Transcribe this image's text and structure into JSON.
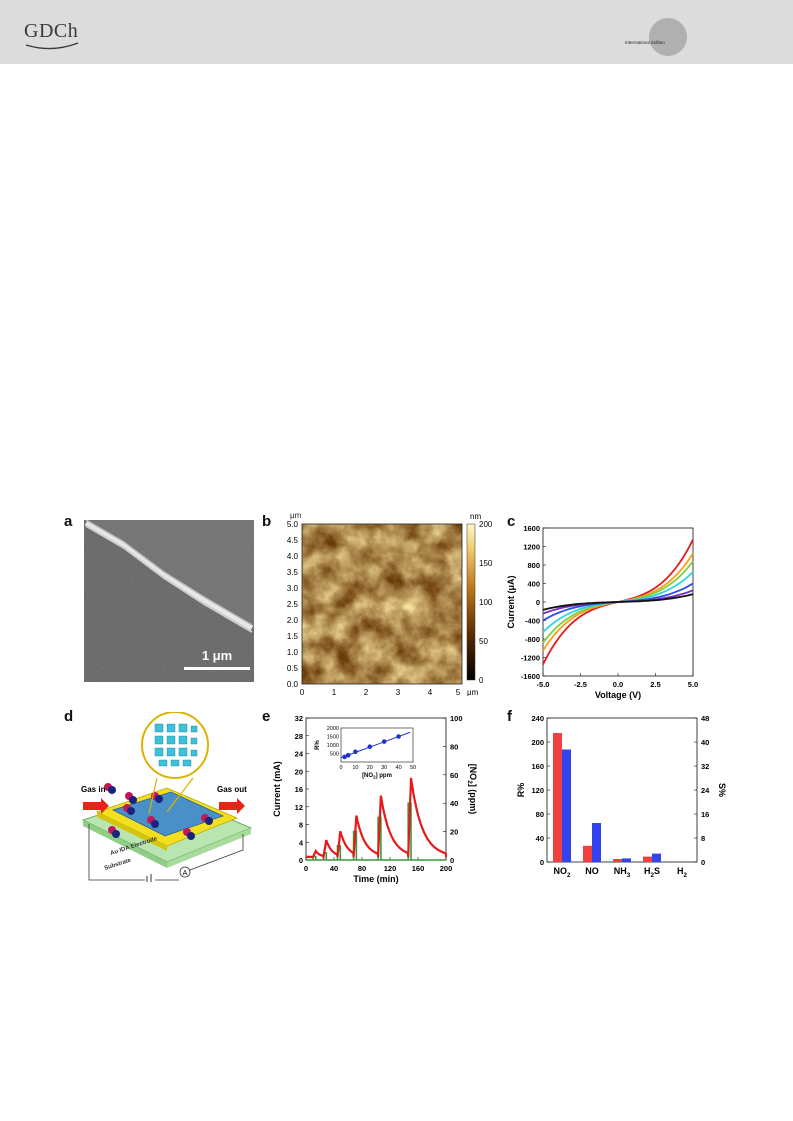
{
  "header": {
    "logo_text": "GDCh",
    "edition_text": "International Edition"
  },
  "panels": {
    "a": {
      "label": "a",
      "scale_bar": "1 μm"
    },
    "b": {
      "label": "b",
      "y_unit": "μm",
      "x_unit": "μm",
      "cbar_unit": "nm",
      "y_ticks": [
        "5.0",
        "4.5",
        "4.0",
        "3.5",
        "3.0",
        "2.5",
        "2.0",
        "1.5",
        "1.0",
        "0.5",
        "0.0"
      ],
      "x_ticks": [
        "0",
        "1",
        "2",
        "3",
        "4",
        "5"
      ],
      "cbar_ticks": [
        "200",
        "150",
        "100",
        "50",
        "0"
      ]
    },
    "c": {
      "label": "c"
    },
    "d": {
      "label": "d",
      "gas_in": "Gas in",
      "gas_out": "Gas out",
      "electrode": "Au IDA Electrode",
      "substrate": "Substrate",
      "ammeter": "A"
    },
    "e": {
      "label": "e"
    },
    "f": {
      "label": "f"
    }
  },
  "chart_data": [
    {
      "panel": "c",
      "type": "line",
      "xlabel": "Voltage (V)",
      "ylabel": "Current (μA)",
      "xlim": [
        -5.0,
        5.0
      ],
      "ylim": [
        -1600,
        1600
      ],
      "x_ticks": [
        "-5.0",
        "-2.5",
        "0.0",
        "2.5",
        "5.0"
      ],
      "y_ticks": [
        "1600",
        "1200",
        "800",
        "400",
        "0",
        "-400",
        "-800",
        "-1200",
        "-1600"
      ],
      "series": [
        {
          "color": "#e41a1c",
          "y_at_neg5": -1350,
          "y_at_pos5": 1350
        },
        {
          "color": "#ff9e1a",
          "y_at_neg5": -1050,
          "y_at_pos5": 1050
        },
        {
          "color": "#7fd13b",
          "y_at_neg5": -880,
          "y_at_pos5": 880
        },
        {
          "color": "#2fd7d7",
          "y_at_neg5": -650,
          "y_at_pos5": 650
        },
        {
          "color": "#2b4fe8",
          "y_at_neg5": -400,
          "y_at_pos5": 400
        },
        {
          "color": "#7b2fbf",
          "y_at_neg5": -250,
          "y_at_pos5": 250
        },
        {
          "color": "#111111",
          "y_at_neg5": -170,
          "y_at_pos5": 170
        }
      ]
    },
    {
      "panel": "e",
      "type": "line",
      "xlabel": "Time (min)",
      "ylabel": "Current (mA)",
      "y2label": "[NO2] (ppm)",
      "xlim": [
        0,
        200
      ],
      "ylim": [
        0,
        32
      ],
      "y2lim": [
        0,
        100
      ],
      "x_ticks": [
        "0",
        "40",
        "80",
        "120",
        "160",
        "200"
      ],
      "y_ticks": [
        "32",
        "28",
        "24",
        "20",
        "16",
        "12",
        "8",
        "4",
        "0"
      ],
      "y2_ticks": [
        "100",
        "80",
        "60",
        "40",
        "20",
        "0"
      ],
      "pulses": [
        {
          "start": 10,
          "end": 14,
          "ppm": 2.5,
          "peak_current": 2.0
        },
        {
          "start": 25,
          "end": 29,
          "ppm": 5,
          "peak_current": 4.5
        },
        {
          "start": 45,
          "end": 49,
          "ppm": 10,
          "peak_current": 6.5
        },
        {
          "start": 68,
          "end": 72,
          "ppm": 20,
          "peak_current": 10.0
        },
        {
          "start": 103,
          "end": 107,
          "ppm": 30,
          "peak_current": 14.5
        },
        {
          "start": 146,
          "end": 150,
          "ppm": 40,
          "peak_current": 18.5
        }
      ],
      "inset": {
        "xlabel": "[NO2] ppm",
        "ylabel": "R%",
        "xlim": [
          0,
          50
        ],
        "ylim": [
          0,
          2000
        ],
        "x_ticks": [
          "0",
          "10",
          "20",
          "30",
          "40",
          "50"
        ],
        "y_ticks": [
          "2000",
          "1500",
          "1000",
          "500"
        ],
        "points": [
          [
            2.5,
            300
          ],
          [
            5,
            400
          ],
          [
            10,
            600
          ],
          [
            20,
            900
          ],
          [
            30,
            1200
          ],
          [
            40,
            1500
          ]
        ]
      }
    },
    {
      "panel": "f",
      "type": "bar",
      "categories": [
        "NO2",
        "NO",
        "NH3",
        "H2S",
        "H2"
      ],
      "ylabel": "R%",
      "y2label": "S%",
      "ylim": [
        0,
        240
      ],
      "y2lim": [
        0,
        48
      ],
      "y_ticks": [
        "240",
        "200",
        "160",
        "120",
        "80",
        "40",
        "0"
      ],
      "y2_ticks": [
        "48",
        "40",
        "32",
        "24",
        "16",
        "8",
        "0"
      ],
      "series": [
        {
          "color": "#f04040",
          "axis": "left",
          "values": [
            215,
            27,
            5,
            9,
            0
          ]
        },
        {
          "color": "#3344ee",
          "axis": "right",
          "values": [
            37.5,
            13,
            1.2,
            2.8,
            0
          ]
        }
      ]
    }
  ]
}
